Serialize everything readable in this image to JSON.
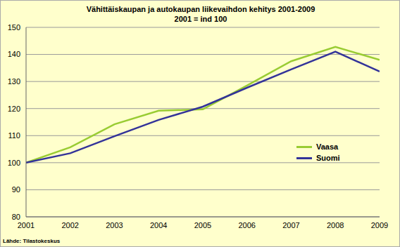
{
  "chart_data": {
    "type": "line",
    "title": "Vähittäiskaupan ja autokaupan liikevaihdon kehitys 2001-2009",
    "subtitle": "2001 = ind 100",
    "annotations": [
      "Lähde: Tilastokeskus"
    ],
    "x": [
      2001,
      2002,
      2003,
      2004,
      2005,
      2006,
      2007,
      2008,
      2009
    ],
    "series": [
      {
        "name": "Vaasa",
        "color": "#99cc33",
        "values": [
          100,
          105.7,
          114.2,
          119.2,
          119.7,
          128.5,
          137.5,
          142.8,
          138
        ]
      },
      {
        "name": "Suomi",
        "color": "#333399",
        "values": [
          100,
          103.5,
          109.8,
          115.8,
          120.7,
          127.7,
          134.5,
          141,
          133.7
        ]
      }
    ],
    "xlim": [
      2001,
      2009
    ],
    "xticks": [
      2001,
      2002,
      2003,
      2004,
      2005,
      2006,
      2007,
      2008,
      2009
    ],
    "ylim": [
      80,
      150
    ],
    "yticks": [
      80,
      90,
      100,
      110,
      120,
      130,
      140,
      150
    ],
    "grid": true,
    "legend": "right"
  }
}
